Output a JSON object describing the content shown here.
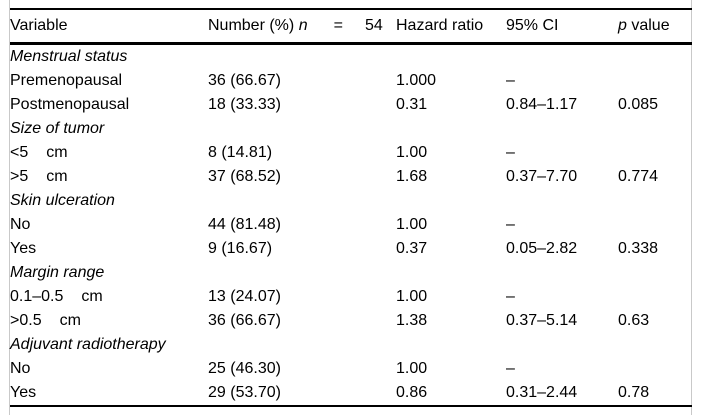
{
  "style": {
    "text_color": "#000000",
    "rule_color": "#000000",
    "frame_color": "#c9c9c9",
    "background": "#ffffff"
  },
  "table": {
    "headers": {
      "variable": "Variable",
      "number_prefix": "Number (%) ",
      "number_n": "n",
      "number_eq": "=",
      "number_total": "54",
      "hazard_ratio": "Hazard ratio",
      "ci": "95% CI",
      "p_italic": "p",
      "p_rest": " value"
    },
    "rows": [
      {
        "type": "category",
        "label": "Menstrual status"
      },
      {
        "type": "item",
        "label": "Premenopausal",
        "number": "36 (66.67)",
        "hazard_ratio": "1.000",
        "ci": "–",
        "p_value": ""
      },
      {
        "type": "item",
        "label": "Postmenopausal",
        "number": "18 (33.33)",
        "hazard_ratio": "0.31",
        "ci": "0.84–1.17",
        "p_value": "0.085"
      },
      {
        "type": "category",
        "label": "Size of tumor"
      },
      {
        "type": "item",
        "label": "<5",
        "unit": "cm",
        "number": "8 (14.81)",
        "hazard_ratio": "1.00",
        "ci": "–",
        "p_value": ""
      },
      {
        "type": "item",
        "label": ">5",
        "unit": "cm",
        "number": "37 (68.52)",
        "hazard_ratio": "1.68",
        "ci": "0.37–7.70",
        "p_value": "0.774"
      },
      {
        "type": "category",
        "label": "Skin ulceration"
      },
      {
        "type": "item",
        "label": "No",
        "number": "44 (81.48)",
        "hazard_ratio": "1.00",
        "ci": "–",
        "p_value": ""
      },
      {
        "type": "item",
        "label": "Yes",
        "number": "9 (16.67)",
        "hazard_ratio": "0.37",
        "ci": "0.05–2.82",
        "p_value": "0.338"
      },
      {
        "type": "category",
        "label": "Margin range"
      },
      {
        "type": "item",
        "label": "0.1–0.5",
        "unit": "cm",
        "number": "13 (24.07)",
        "hazard_ratio": "1.00",
        "ci": "–",
        "p_value": ""
      },
      {
        "type": "item",
        "label": ">0.5",
        "unit": "cm",
        "number": "36 (66.67)",
        "hazard_ratio": "1.38",
        "ci": "0.37–5.14",
        "p_value": "0.63"
      },
      {
        "type": "category",
        "label": "Adjuvant radiotherapy"
      },
      {
        "type": "item",
        "label": "No",
        "number": "25 (46.30)",
        "hazard_ratio": "1.00",
        "ci": "–",
        "p_value": ""
      },
      {
        "type": "item",
        "label": "Yes",
        "number": "29 (53.70)",
        "hazard_ratio": "0.86",
        "ci": "0.31–2.44",
        "p_value": "0.78"
      }
    ]
  }
}
